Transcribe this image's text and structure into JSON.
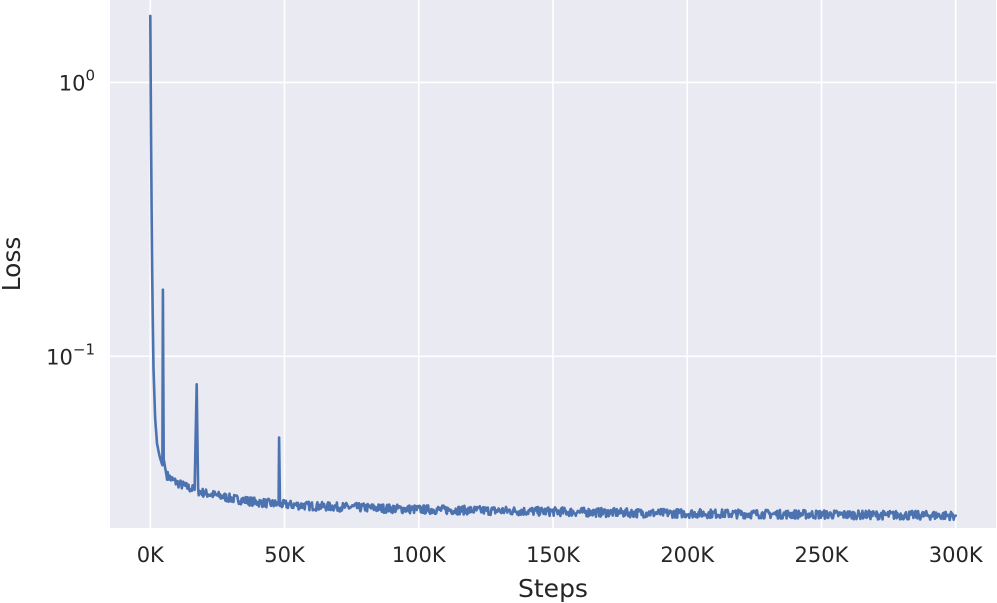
{
  "chart_data": {
    "type": "line",
    "xlabel": "Steps",
    "ylabel": "Loss",
    "yscale": "log",
    "xlim": [
      -15000,
      315000
    ],
    "ylim": [
      0.0236,
      2.0
    ],
    "grid": true,
    "style": "seaborn-darkgrid",
    "colors": {
      "plot_bg": "#eaeaf2",
      "line": "#4c72b0",
      "grid": "#ffffff",
      "text": "#262626"
    },
    "x_ticks": [
      {
        "value": 0,
        "label": "0K"
      },
      {
        "value": 50000,
        "label": "50K"
      },
      {
        "value": 100000,
        "label": "100K"
      },
      {
        "value": 150000,
        "label": "150K"
      },
      {
        "value": 200000,
        "label": "200K"
      },
      {
        "value": 250000,
        "label": "250K"
      },
      {
        "value": 300000,
        "label": "300K"
      }
    ],
    "y_ticks": [
      {
        "value": 1.0,
        "base": "10",
        "exp": "0"
      },
      {
        "value": 0.1,
        "base": "10",
        "exp": "−1"
      }
    ],
    "series": [
      {
        "values": [
          [
            0,
            1.75
          ],
          [
            300,
            0.6
          ],
          [
            700,
            0.2
          ],
          [
            1200,
            0.09
          ],
          [
            1800,
            0.06
          ],
          [
            2500,
            0.048
          ],
          [
            3500,
            0.043
          ],
          [
            4500,
            0.04
          ],
          [
            4700,
            0.175
          ],
          [
            5000,
            0.042
          ],
          [
            6000,
            0.037
          ],
          [
            8000,
            0.0355
          ],
          [
            10000,
            0.0345
          ],
          [
            13000,
            0.0335
          ],
          [
            16500,
            0.0325
          ],
          [
            17300,
            0.079
          ],
          [
            17800,
            0.0322
          ],
          [
            20000,
            0.0317
          ],
          [
            25000,
            0.031
          ],
          [
            30000,
            0.0303
          ],
          [
            35000,
            0.0298
          ],
          [
            40000,
            0.0293
          ],
          [
            45000,
            0.029
          ],
          [
            47800,
            0.0288
          ],
          [
            48000,
            0.0505
          ],
          [
            48300,
            0.0288
          ],
          [
            55000,
            0.0286
          ],
          [
            60000,
            0.0284
          ],
          [
            70000,
            0.0282
          ],
          [
            80000,
            0.028
          ],
          [
            90000,
            0.0278
          ],
          [
            100000,
            0.0276
          ],
          [
            120000,
            0.0274
          ],
          [
            140000,
            0.0272
          ],
          [
            160000,
            0.027
          ],
          [
            180000,
            0.0268
          ],
          [
            200000,
            0.0267
          ],
          [
            220000,
            0.0266
          ],
          [
            240000,
            0.0265
          ],
          [
            260000,
            0.0264
          ],
          [
            280000,
            0.0263
          ],
          [
            300000,
            0.0262
          ]
        ]
      }
    ]
  }
}
